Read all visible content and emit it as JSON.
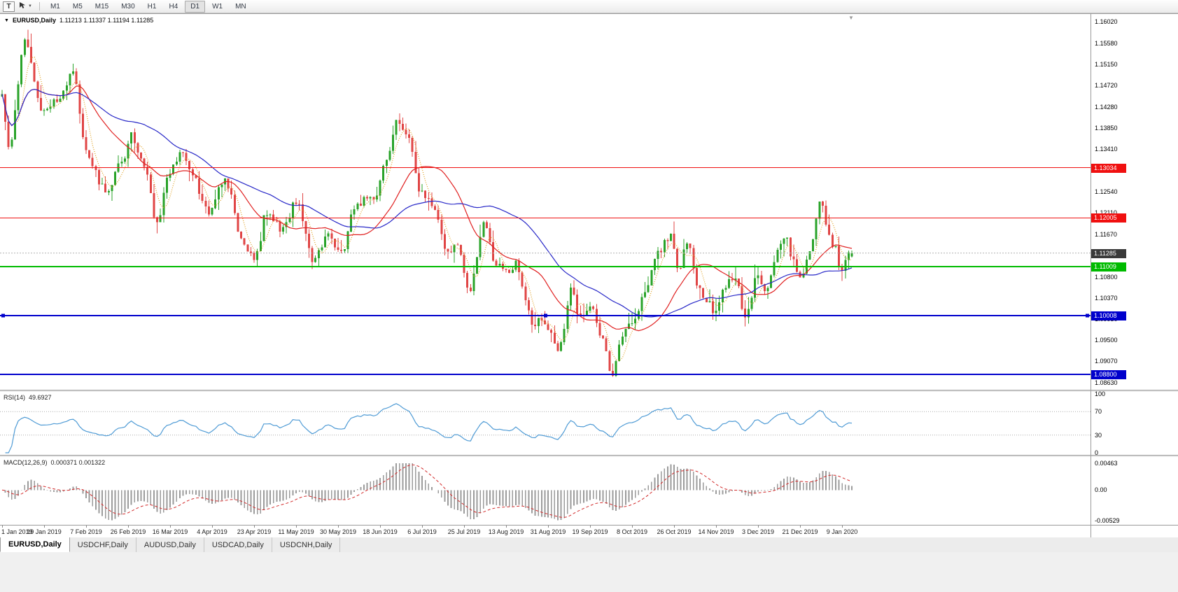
{
  "toolbar": {
    "tool_button_label": "T",
    "timeframes": [
      "M1",
      "M5",
      "M15",
      "M30",
      "H1",
      "H4",
      "D1",
      "W1",
      "MN"
    ],
    "active_timeframe": "D1"
  },
  "chart": {
    "symbol_period": "EURUSD,Daily",
    "ohlc_text": "1.11213 1.11337 1.11194 1.11285"
  },
  "chart_data": {
    "type": "candlestick",
    "symbol": "EURUSD",
    "period": "Daily",
    "last_ohlc": {
      "open": 1.11213,
      "high": 1.11337,
      "low": 1.11194,
      "close": 1.11285
    },
    "y_range": [
      1.08487,
      1.16178
    ],
    "y_tick_labels": [
      "1.16020",
      "1.15580",
      "1.15150",
      "1.14720",
      "1.14280",
      "1.13850",
      "1.13410",
      "1.12980",
      "1.12540",
      "1.12110",
      "1.11670",
      "1.11240",
      "1.10800",
      "1.10370",
      "1.09930",
      "1.09500",
      "1.09070",
      "1.08630"
    ],
    "x_tick_labels": [
      "1 Jan 2019",
      "19 Jan 2019",
      "7 Feb 2019",
      "26 Feb 2019",
      "16 Mar 2019",
      "4 Apr 2019",
      "23 Apr 2019",
      "11 May 2019",
      "30 May 2019",
      "18 Jun 2019",
      "6 Jul 2019",
      "25 Jul 2019",
      "13 Aug 2019",
      "31 Aug 2019",
      "19 Sep 2019",
      "8 Oct 2019",
      "26 Oct 2019",
      "14 Nov 2019",
      "3 Dec 2019",
      "21 Dec 2019",
      "9 Jan 2020"
    ],
    "candle_count": 264,
    "colors": {
      "up": "#29a329",
      "down": "#e04545",
      "current_line": "#b0b0b0",
      "current_box": "#3a3a3a"
    },
    "moving_averages": [
      {
        "period": 5,
        "color": "#e0a020",
        "style": "dotted"
      },
      {
        "period": 20,
        "color": "#e02020",
        "style": "solid"
      },
      {
        "period": 45,
        "color": "#2929c8",
        "style": "solid"
      }
    ],
    "horizontal_lines": [
      {
        "price": 1.13034,
        "label": "1.13034",
        "color": "#f01010",
        "width": 1,
        "selected": false
      },
      {
        "price": 1.12005,
        "label": "1.12005",
        "color": "#f01010",
        "width": 1,
        "selected": false
      },
      {
        "price": 1.11009,
        "label": "1.11009",
        "color": "#00bb00",
        "width": 2,
        "selected": false
      },
      {
        "price": 1.10008,
        "label": "1.10008",
        "color": "#0000cc",
        "width": 2,
        "selected": true
      },
      {
        "price": 1.088,
        "label": "1.08800",
        "color": "#0000cc",
        "width": 2,
        "selected": false
      }
    ],
    "current_price": {
      "value": 1.11285,
      "label": "1.11285"
    },
    "close_waypoints": [
      [
        0.0,
        1.145
      ],
      [
        0.008,
        1.135
      ],
      [
        0.027,
        1.156
      ],
      [
        0.048,
        1.1415
      ],
      [
        0.068,
        1.1445
      ],
      [
        0.083,
        1.15
      ],
      [
        0.1,
        1.133
      ],
      [
        0.122,
        1.1255
      ],
      [
        0.14,
        1.131
      ],
      [
        0.152,
        1.137
      ],
      [
        0.17,
        1.13
      ],
      [
        0.18,
        1.119
      ],
      [
        0.2,
        1.13
      ],
      [
        0.212,
        1.134
      ],
      [
        0.225,
        1.128
      ],
      [
        0.242,
        1.1215
      ],
      [
        0.262,
        1.128
      ],
      [
        0.283,
        1.115
      ],
      [
        0.297,
        1.1115
      ],
      [
        0.312,
        1.1215
      ],
      [
        0.33,
        1.1175
      ],
      [
        0.346,
        1.1235
      ],
      [
        0.366,
        1.1115
      ],
      [
        0.383,
        1.116
      ],
      [
        0.398,
        1.113
      ],
      [
        0.418,
        1.123
      ],
      [
        0.438,
        1.1245
      ],
      [
        0.452,
        1.132
      ],
      [
        0.464,
        1.1395
      ],
      [
        0.478,
        1.1365
      ],
      [
        0.494,
        1.125
      ],
      [
        0.51,
        1.1215
      ],
      [
        0.525,
        1.1125
      ],
      [
        0.536,
        1.1145
      ],
      [
        0.55,
        1.1055
      ],
      [
        0.568,
        1.119
      ],
      [
        0.582,
        1.11
      ],
      [
        0.593,
        1.109
      ],
      [
        0.605,
        1.1105
      ],
      [
        0.617,
        1.103
      ],
      [
        0.625,
        1.098
      ],
      [
        0.635,
        1.0995
      ],
      [
        0.643,
        1.097
      ],
      [
        0.655,
        1.093
      ],
      [
        0.67,
        1.105
      ],
      [
        0.681,
        1.0995
      ],
      [
        0.692,
        1.1025
      ],
      [
        0.706,
        1.095
      ],
      [
        0.718,
        1.0885
      ],
      [
        0.73,
        1.096
      ],
      [
        0.742,
        1.099
      ],
      [
        0.757,
        1.1045
      ],
      [
        0.772,
        1.113
      ],
      [
        0.786,
        1.1165
      ],
      [
        0.796,
        1.1095
      ],
      [
        0.806,
        1.1155
      ],
      [
        0.818,
        1.107
      ],
      [
        0.83,
        1.1025
      ],
      [
        0.84,
        1.1005
      ],
      [
        0.852,
        1.106
      ],
      [
        0.862,
        1.1085
      ],
      [
        0.875,
        1.1
      ],
      [
        0.888,
        1.1075
      ],
      [
        0.9,
        1.105
      ],
      [
        0.913,
        1.113
      ],
      [
        0.921,
        1.1165
      ],
      [
        0.93,
        1.112
      ],
      [
        0.939,
        1.108
      ],
      [
        0.95,
        1.113
      ],
      [
        0.964,
        1.123
      ],
      [
        0.972,
        1.1175
      ],
      [
        0.98,
        1.114
      ],
      [
        0.987,
        1.1095
      ],
      [
        1.0,
        1.1128
      ]
    ],
    "indicators": {
      "rsi": {
        "label": "RSI(14)",
        "value_text": "49.6927",
        "last_value": 49.6927,
        "scale_labels": [
          {
            "v": 100,
            "t": "100"
          },
          {
            "v": 70,
            "t": "70"
          },
          {
            "v": 30,
            "t": "30"
          },
          {
            "v": 0,
            "t": "0"
          }
        ],
        "levels": [
          70,
          30
        ],
        "color": "#4f9bd5"
      },
      "macd": {
        "label": "MACD(12,26,9)",
        "value_text": "0.000371 0.001322",
        "macd_value": 0.000371,
        "signal_value": 0.001322,
        "scale_labels": [
          {
            "v": 0.00463,
            "t": "0.00463"
          },
          {
            "v": 0,
            "t": "0.00"
          },
          {
            "v": -0.00529,
            "t": "-0.00529"
          }
        ],
        "range": [
          -0.00529,
          0.00463
        ],
        "histogram_color": "#9b9b9b",
        "signal_color": "#d22a2a"
      }
    }
  },
  "tabs": [
    {
      "label": "EURUSD,Daily",
      "active": true
    },
    {
      "label": "USDCHF,Daily",
      "active": false
    },
    {
      "label": "AUDUSD,Daily",
      "active": false
    },
    {
      "label": "USDCAD,Daily",
      "active": false
    },
    {
      "label": "USDCNH,Daily",
      "active": false
    }
  ]
}
